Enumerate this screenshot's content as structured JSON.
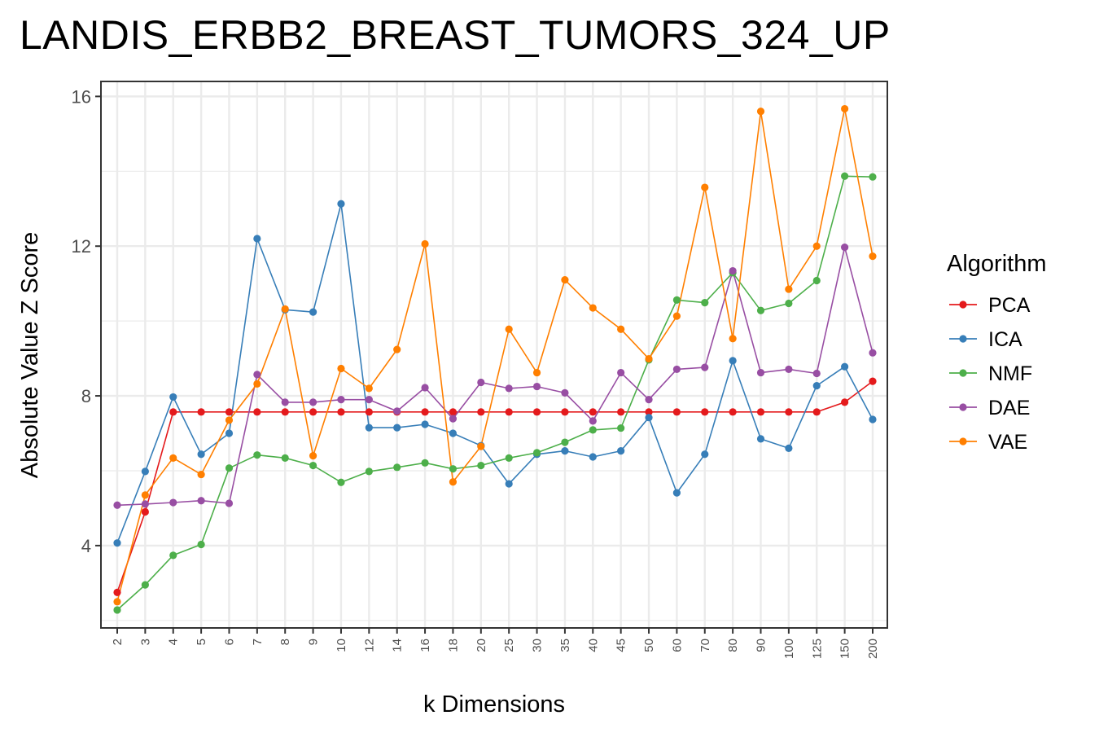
{
  "chart_data": {
    "type": "line",
    "title": "LANDIS_ERBB2_BREAST_TUMORS_324_UP",
    "xlabel": "k Dimensions",
    "ylabel": "Absolute Value Z Score",
    "categories": [
      "2",
      "3",
      "4",
      "5",
      "6",
      "7",
      "8",
      "9",
      "10",
      "12",
      "14",
      "16",
      "18",
      "20",
      "25",
      "30",
      "35",
      "40",
      "45",
      "50",
      "60",
      "70",
      "80",
      "90",
      "100",
      "125",
      "150",
      "200"
    ],
    "ylim": [
      1.8,
      16.4
    ],
    "yticks": [
      4,
      8,
      12,
      16
    ],
    "grid": true,
    "legend": {
      "title": "Algorithm",
      "position": "right"
    },
    "series": [
      {
        "name": "PCA",
        "color": "#e41a1c",
        "values": [
          2.75,
          4.9,
          7.57,
          7.57,
          7.57,
          7.57,
          7.57,
          7.57,
          7.57,
          7.57,
          7.57,
          7.57,
          7.57,
          7.57,
          7.57,
          7.57,
          7.57,
          7.57,
          7.57,
          7.57,
          7.57,
          7.57,
          7.57,
          7.57,
          7.57,
          7.57,
          7.83,
          8.39
        ]
      },
      {
        "name": "ICA",
        "color": "#377eb8",
        "values": [
          4.07,
          5.98,
          7.97,
          6.44,
          7.0,
          12.2,
          10.3,
          10.24,
          13.13,
          7.15,
          7.15,
          7.24,
          7.0,
          6.67,
          5.65,
          6.44,
          6.53,
          6.37,
          6.53,
          7.42,
          5.41,
          6.44,
          8.94,
          6.85,
          6.6,
          8.27,
          8.78,
          7.37
        ]
      },
      {
        "name": "NMF",
        "color": "#4daf4a",
        "values": [
          2.28,
          2.95,
          3.74,
          4.03,
          6.07,
          6.42,
          6.34,
          6.14,
          5.69,
          5.98,
          6.09,
          6.21,
          6.05,
          6.14,
          6.34,
          6.48,
          6.76,
          7.09,
          7.14,
          8.96,
          10.56,
          10.49,
          11.29,
          10.28,
          10.47,
          11.08,
          13.87,
          13.85
        ]
      },
      {
        "name": "DAE",
        "color": "#984ea3",
        "values": [
          5.08,
          5.11,
          5.15,
          5.2,
          5.13,
          8.57,
          7.83,
          7.83,
          7.9,
          7.9,
          7.59,
          8.22,
          7.39,
          8.36,
          8.2,
          8.25,
          8.08,
          7.33,
          8.62,
          7.9,
          8.71,
          8.76,
          11.34,
          8.62,
          8.71,
          8.6,
          11.97,
          9.15
        ]
      },
      {
        "name": "VAE",
        "color": "#ff7f00",
        "values": [
          2.5,
          5.35,
          6.34,
          5.9,
          7.35,
          8.32,
          10.32,
          6.4,
          8.73,
          8.2,
          9.24,
          12.06,
          5.7,
          6.65,
          9.78,
          8.62,
          11.1,
          10.35,
          9.78,
          8.99,
          10.13,
          13.57,
          9.53,
          15.6,
          10.85,
          12.0,
          15.67,
          11.73
        ]
      }
    ]
  }
}
